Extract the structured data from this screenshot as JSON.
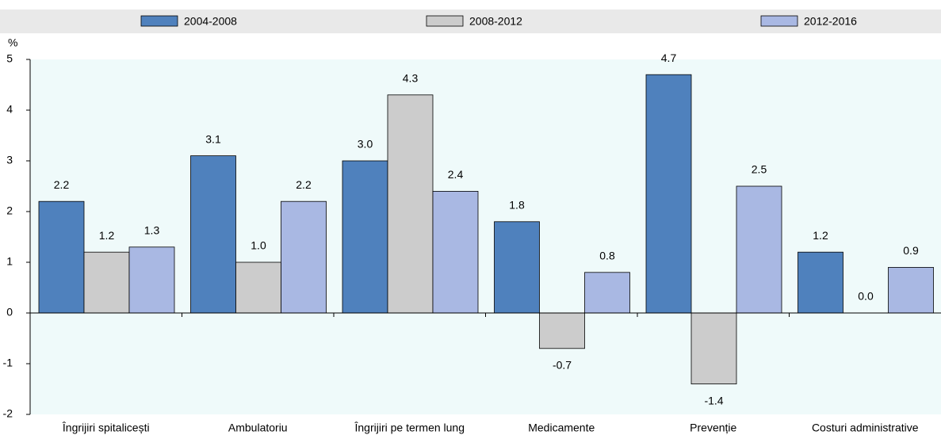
{
  "chart_data": {
    "type": "bar",
    "y_label": "%",
    "categories": [
      "Îngrijiri spitalicești",
      "Ambulatoriu",
      "Îngrijiri pe termen lung",
      "Medicamente",
      "Prevenție",
      "Costuri administrative"
    ],
    "series": [
      {
        "name": "2004-2008",
        "color": "#4f81bd",
        "values": [
          2.2,
          3.1,
          3.0,
          1.8,
          4.7,
          1.2
        ],
        "value_labels": [
          "2.2",
          "3.1",
          "3.0",
          "1.8",
          "4.7",
          "1.2"
        ]
      },
      {
        "name": "2008-2012",
        "color": "#cccccc",
        "values": [
          1.2,
          1.0,
          4.3,
          -0.7,
          -1.4,
          0.0
        ],
        "value_labels": [
          "1.2",
          "1.0",
          "4.3",
          "-0.7",
          "-1.4",
          "0.0"
        ]
      },
      {
        "name": "2012-2016",
        "color": "#a9b8e3",
        "values": [
          1.3,
          2.2,
          2.4,
          0.8,
          2.5,
          0.9
        ],
        "value_labels": [
          "1.3",
          "2.2",
          "2.4",
          "0.8",
          "2.5",
          "0.9"
        ]
      }
    ],
    "ylim": [
      -2,
      5
    ],
    "yticks": [
      -2,
      -1,
      0,
      1,
      2,
      3,
      4,
      5
    ]
  }
}
